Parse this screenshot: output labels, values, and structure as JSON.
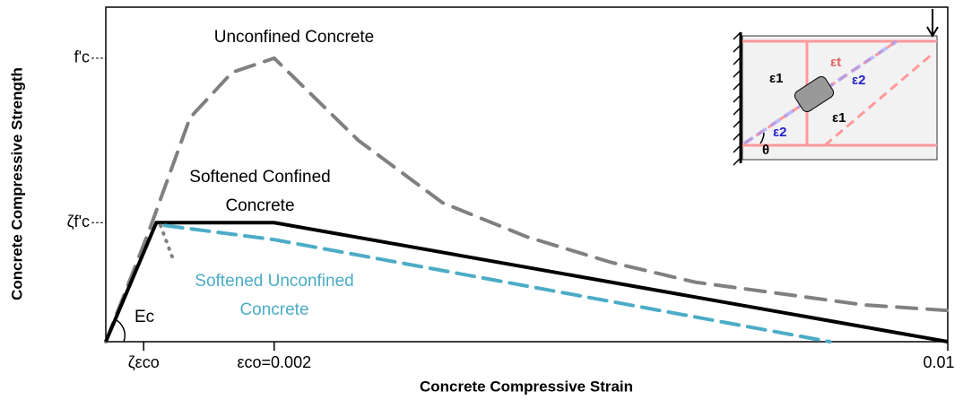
{
  "chart_data": {
    "type": "line",
    "x_label": "Concrete Compressive Strain",
    "y_label": "Concrete Compressive Strength",
    "xlim": [
      0,
      0.01
    ],
    "ylim": [
      0,
      1.18
    ],
    "xticks": [
      {
        "value": 0.00045,
        "label": "ζεco"
      },
      {
        "value": 0.002,
        "label": "εco=0.002"
      },
      0.01
    ],
    "yticks": [
      {
        "value": 0.42,
        "label": "ζf'c"
      },
      {
        "value": 1,
        "label": "f'c"
      }
    ],
    "series": [
      {
        "name": "Unconfined Concrete",
        "color": "#808080",
        "dash": "22 12",
        "x": [
          0,
          0.0005,
          0.001,
          0.0015,
          0.002,
          0.003,
          0.004,
          0.005,
          0.006,
          0.007,
          0.008,
          0.009,
          0.01
        ],
        "values": [
          0,
          0.38,
          0.79,
          0.95,
          1,
          0.71,
          0.49,
          0.37,
          0.28,
          0.21,
          0.17,
          0.13,
          0.11
        ]
      },
      {
        "name": "Softened Confined Concrete",
        "color": "#000000",
        "dash": "none",
        "x": [
          0,
          0.0006,
          0.002,
          0.01
        ],
        "values": [
          0,
          0.42,
          0.42,
          0
        ]
      },
      {
        "name": "Softened Unconfined Concrete",
        "color": "#4bacc6",
        "dash": "20 10",
        "x": [
          0.0007,
          0.002,
          0.0086
        ],
        "values": [
          0.41,
          0.36,
          0
        ]
      },
      {
        "color": "#808080",
        "dash": "1 8",
        "x": [
          0.00065,
          0.0008
        ],
        "values": [
          0.41,
          0.29
        ]
      }
    ],
    "annotations": [
      {
        "lines": [
          "Unconfined Concrete"
        ],
        "color": "#000000"
      },
      {
        "lines": [
          "Softened Confined",
          "Concrete"
        ],
        "color": "#000000"
      },
      {
        "lines": [
          "Softened Unconfined",
          "Concrete"
        ],
        "color": "#4bacc6"
      },
      {
        "lines": [
          "Ec"
        ],
        "color": "#000000"
      }
    ],
    "inset_labels": [
      "ε1",
      "εt",
      "ε2",
      "ε2",
      "ε1",
      "θ"
    ]
  }
}
